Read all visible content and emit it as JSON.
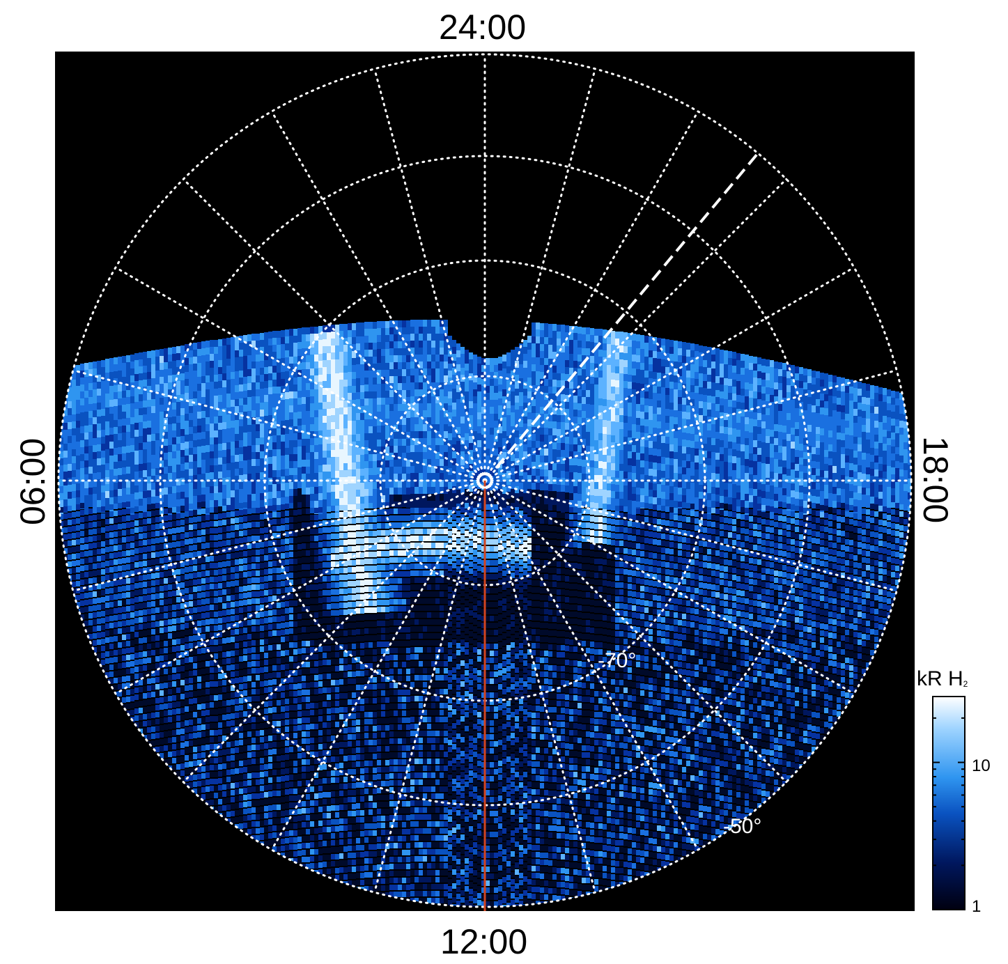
{
  "local_time_labels": {
    "top": "24:00",
    "bottom": "12:00",
    "left": "06:00",
    "right": "18:00"
  },
  "latitude_labels": {
    "inner": "-70°",
    "outer": "-50°"
  },
  "colorbar": {
    "title_main": "kR H",
    "title_sub": "2",
    "tick_labels": [
      "10",
      "1"
    ],
    "scale": "log",
    "colors": [
      "#000010",
      "#00175e",
      "#0a52c0",
      "#2f95f0",
      "#9fd4ff",
      "#ffffff"
    ]
  },
  "colors": {
    "background": "#000000",
    "grid": "#ffffff",
    "meridian_line": "#d2441f"
  }
}
